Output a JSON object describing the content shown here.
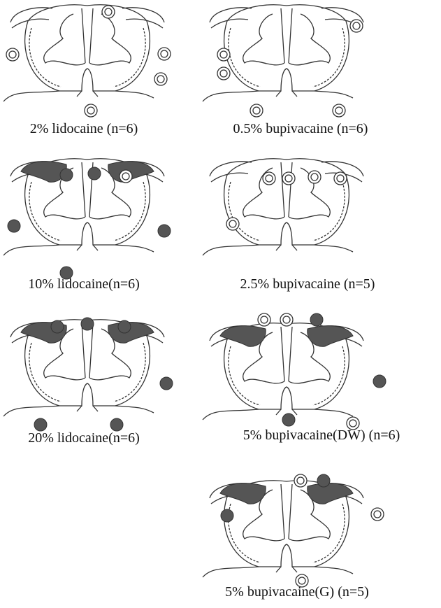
{
  "panels": [
    {
      "label": "2% lidocaine (n=6)"
    },
    {
      "label": "0.5% bupivacaine (n=6)"
    },
    {
      "label": "10% lidocaine(n=6)"
    },
    {
      "label": "2.5% bupivacaine (n=5)"
    },
    {
      "label": "20% lidocaine(n=6)"
    },
    {
      "label": "5% bupivacaine(DW) (n=6)"
    },
    {
      "label": "5% bupivacaine(G) (n=5)"
    }
  ]
}
